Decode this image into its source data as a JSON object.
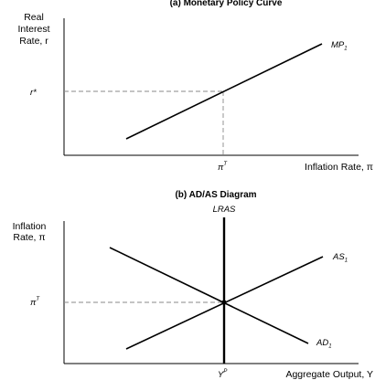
{
  "panel_a": {
    "title": "(a) Monetary Policy Curve",
    "y_label": [
      "Real",
      "Interest",
      "Rate, r"
    ],
    "x_label": "Inflation Rate, π",
    "curve_label": "MP",
    "curve_label_sub": "1",
    "y_tick": "r*",
    "x_tick": "π",
    "x_tick_sup": "T"
  },
  "panel_b": {
    "title": "(b) AD/AS Diagram",
    "y_label": [
      "Inflation",
      "Rate, π"
    ],
    "x_label": "Aggregate Output, Y",
    "vertical_label": "LRAS",
    "as_label": "AS",
    "as_label_sub": "1",
    "ad_label": "AD",
    "ad_label_sub": "1",
    "y_tick": "π",
    "y_tick_sup": "T",
    "x_tick": "Y",
    "x_tick_sup": "P"
  },
  "colors": {
    "line": "#000000",
    "guide": "#8a8a8a"
  }
}
